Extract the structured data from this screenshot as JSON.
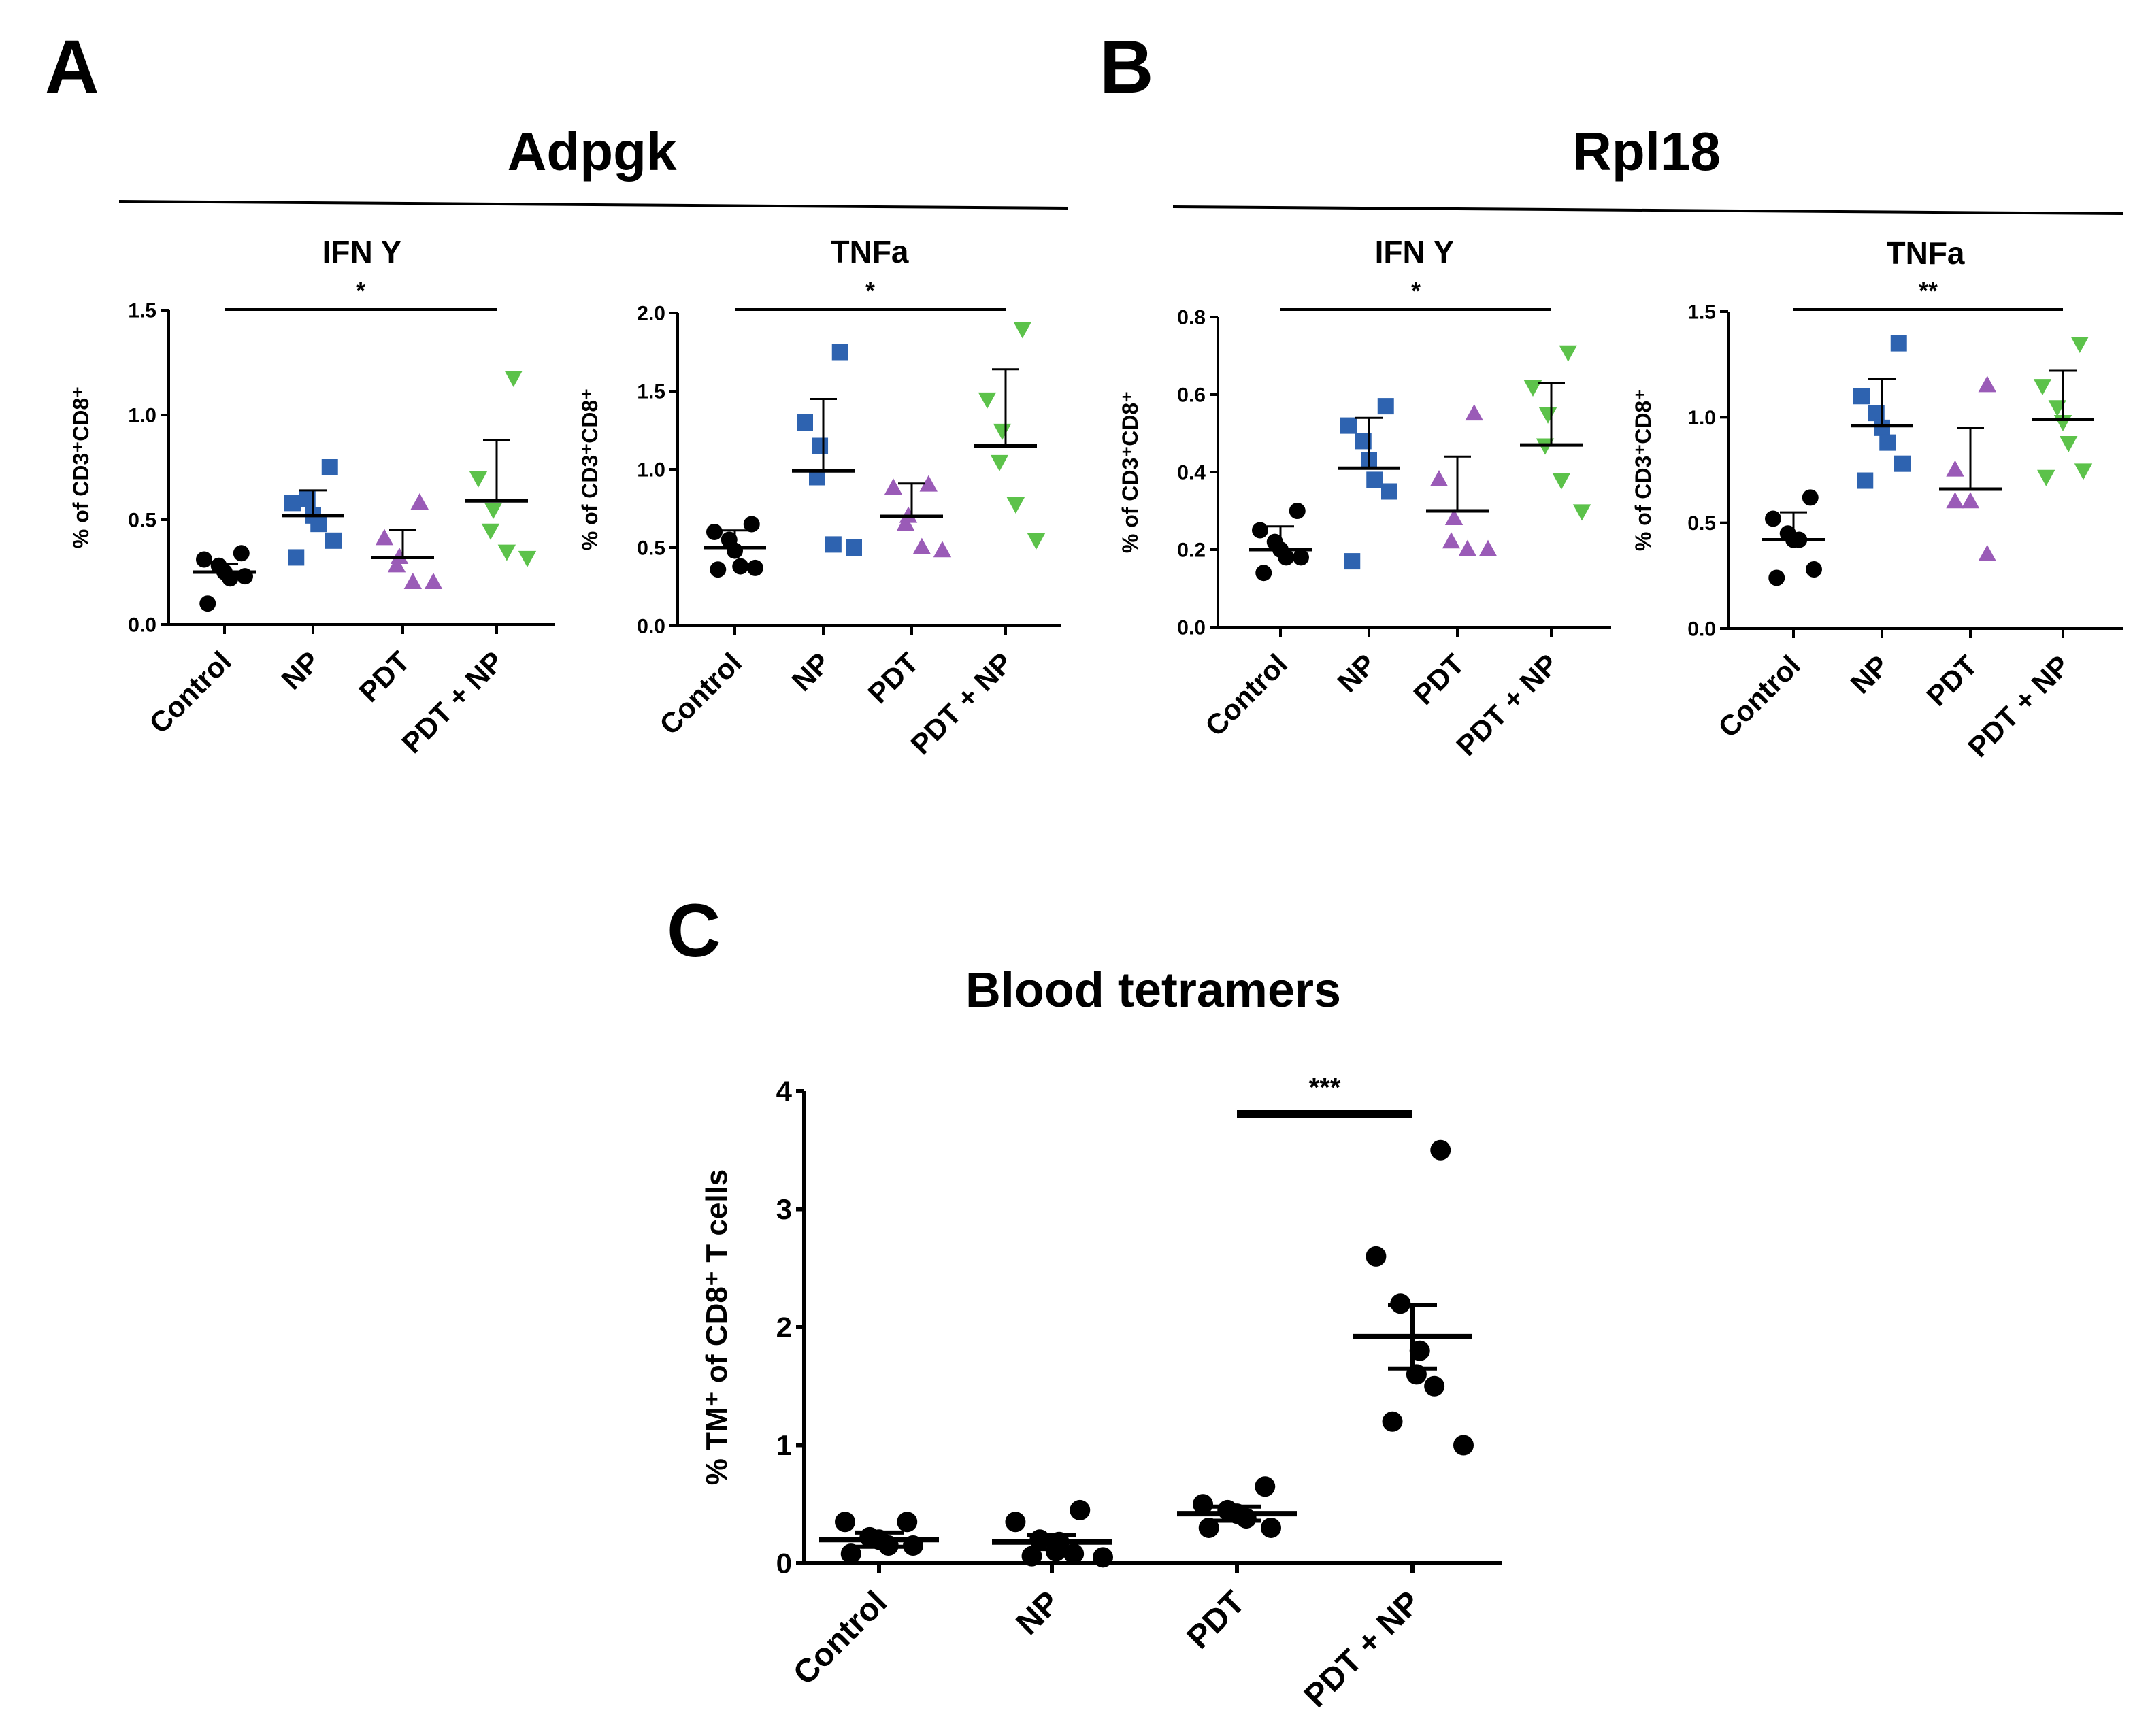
{
  "colors": {
    "Control": "#000000",
    "NP": "#2e63b0",
    "PDT": "#9a5bb7",
    "PDT + NP": "#5cc24a"
  },
  "markers": {
    "Control": "circle",
    "NP": "square",
    "PDT": "triangle-up",
    "PDT + NP": "triangle-down"
  },
  "chart_data": [
    {
      "panel": "A",
      "group_title": "Adpgk",
      "title": "IFN Y",
      "type": "scatter",
      "ylabel": "% of CD3⁺CD8⁺",
      "categories": [
        "Control",
        "NP",
        "PDT",
        "PDT + NP"
      ],
      "ylim": [
        0,
        1.5
      ],
      "yticks": [
        "0.0",
        "0.5",
        "1.0",
        "1.5"
      ],
      "significance": {
        "from": "Control",
        "to": "PDT + NP",
        "label": "*"
      },
      "series": [
        {
          "category": "Control",
          "points": [
            0.34,
            0.31,
            0.28,
            0.25,
            0.22,
            0.23,
            0.1
          ],
          "mean": 0.25,
          "err": 0.04
        },
        {
          "category": "NP",
          "points": [
            0.75,
            0.58,
            0.6,
            0.52,
            0.48,
            0.4,
            0.32
          ],
          "mean": 0.52,
          "err": 0.12
        },
        {
          "category": "PDT",
          "points": [
            0.58,
            0.41,
            0.32,
            0.28,
            0.2,
            0.2
          ],
          "mean": 0.32,
          "err": 0.13
        },
        {
          "category": "PDT + NP",
          "points": [
            1.18,
            0.7,
            0.55,
            0.45,
            0.35,
            0.32
          ],
          "mean": 0.59,
          "err": 0.29
        }
      ]
    },
    {
      "panel": "A",
      "group_title": "Adpgk",
      "title": "TNFa",
      "type": "scatter",
      "ylabel": "% of CD3⁺CD8⁺",
      "categories": [
        "Control",
        "NP",
        "PDT",
        "PDT + NP"
      ],
      "ylim": [
        0,
        2.0
      ],
      "yticks": [
        "0.0",
        "0.5",
        "1.0",
        "1.5",
        "2.0"
      ],
      "significance": {
        "from": "Control",
        "to": "PDT + NP",
        "label": "*"
      },
      "series": [
        {
          "category": "Control",
          "points": [
            0.65,
            0.6,
            0.55,
            0.48,
            0.38,
            0.37,
            0.36
          ],
          "mean": 0.5,
          "err": 0.11
        },
        {
          "category": "NP",
          "points": [
            1.75,
            1.3,
            1.15,
            0.95,
            0.52,
            0.5
          ],
          "mean": 0.99,
          "err": 0.46
        },
        {
          "category": "PDT",
          "points": [
            0.9,
            0.88,
            0.7,
            0.65,
            0.5,
            0.48
          ],
          "mean": 0.7,
          "err": 0.21
        },
        {
          "category": "PDT + NP",
          "points": [
            1.9,
            1.45,
            1.25,
            1.05,
            0.78,
            0.55
          ],
          "mean": 1.15,
          "err": 0.49
        }
      ]
    },
    {
      "panel": "B",
      "group_title": "Rpl18",
      "title": "IFN Y",
      "type": "scatter",
      "ylabel": "% of CD3⁺CD8⁺",
      "categories": [
        "Control",
        "NP",
        "PDT",
        "PDT + NP"
      ],
      "ylim": [
        0,
        0.8
      ],
      "yticks": [
        "0.0",
        "0.2",
        "0.4",
        "0.6",
        "0.8"
      ],
      "significance": {
        "from": "Control",
        "to": "PDT + NP",
        "label": "*"
      },
      "series": [
        {
          "category": "Control",
          "points": [
            0.3,
            0.25,
            0.22,
            0.2,
            0.18,
            0.18,
            0.14
          ],
          "mean": 0.2,
          "err": 0.06
        },
        {
          "category": "NP",
          "points": [
            0.57,
            0.52,
            0.48,
            0.43,
            0.38,
            0.35,
            0.17
          ],
          "mean": 0.41,
          "err": 0.13
        },
        {
          "category": "PDT",
          "points": [
            0.55,
            0.38,
            0.28,
            0.22,
            0.2,
            0.2
          ],
          "mean": 0.3,
          "err": 0.14
        },
        {
          "category": "PDT + NP",
          "points": [
            0.71,
            0.62,
            0.55,
            0.47,
            0.38,
            0.3
          ],
          "mean": 0.47,
          "err": 0.16
        }
      ]
    },
    {
      "panel": "B",
      "group_title": "Rpl18",
      "title": "TNFa",
      "type": "scatter",
      "ylabel": "% of CD3⁺CD8⁺",
      "categories": [
        "Control",
        "NP",
        "PDT",
        "PDT + NP"
      ],
      "ylim": [
        0,
        1.5
      ],
      "yticks": [
        "0.0",
        "0.5",
        "1.0",
        "1.5"
      ],
      "significance": {
        "from": "Control",
        "to": "PDT + NP",
        "label": "**"
      },
      "series": [
        {
          "category": "Control",
          "points": [
            0.62,
            0.52,
            0.45,
            0.42,
            0.42,
            0.28,
            0.24
          ],
          "mean": 0.42,
          "err": 0.13
        },
        {
          "category": "NP",
          "points": [
            1.35,
            1.1,
            1.02,
            0.95,
            0.88,
            0.78,
            0.7
          ],
          "mean": 0.96,
          "err": 0.22
        },
        {
          "category": "PDT",
          "points": [
            1.15,
            0.75,
            0.6,
            0.6,
            0.35
          ],
          "mean": 0.66,
          "err": 0.29
        },
        {
          "category": "PDT + NP",
          "points": [
            1.35,
            1.15,
            1.05,
            0.98,
            0.88,
            0.75,
            0.72
          ],
          "mean": 0.99,
          "err": 0.23
        }
      ]
    },
    {
      "panel": "C",
      "group_title": "",
      "title": "Blood tetramers",
      "type": "scatter",
      "ylabel": "% TM⁺ of CD8⁺ T cells",
      "categories": [
        "Control",
        "NP",
        "PDT",
        "PDT + NP"
      ],
      "ylim": [
        0,
        4
      ],
      "yticks": [
        "0",
        "1",
        "2",
        "3",
        "4"
      ],
      "significance": {
        "from": "PDT",
        "to": "PDT + NP",
        "label": "***"
      },
      "series": [
        {
          "category": "Control",
          "points": [
            0.35,
            0.35,
            0.22,
            0.2,
            0.15,
            0.15,
            0.08
          ],
          "mean": 0.2,
          "err": 0.06
        },
        {
          "category": "NP",
          "points": [
            0.45,
            0.35,
            0.2,
            0.18,
            0.1,
            0.08,
            0.06,
            0.05
          ],
          "mean": 0.18,
          "err": 0.06
        },
        {
          "category": "PDT",
          "points": [
            0.65,
            0.5,
            0.45,
            0.42,
            0.38,
            0.3,
            0.3
          ],
          "mean": 0.42,
          "err": 0.06
        },
        {
          "category": "PDT + NP",
          "points": [
            3.5,
            2.6,
            2.2,
            1.8,
            1.6,
            1.5,
            1.2,
            1.0
          ],
          "mean": 1.92,
          "err": 0.27
        }
      ]
    }
  ],
  "panel_labels": [
    "A",
    "B",
    "C"
  ],
  "group_titles": [
    "Adpgk",
    "Rpl18"
  ]
}
